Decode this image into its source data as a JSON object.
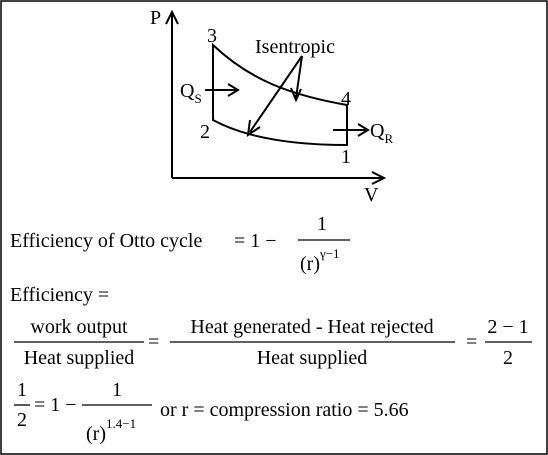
{
  "diagram": {
    "axis_p": "P",
    "axis_v": "V",
    "point_1": "1",
    "point_2": "2",
    "point_3": "3",
    "point_4": "4",
    "isentropic": "Isentropic",
    "heat_in": {
      "symbol": "Q",
      "sub": "S"
    },
    "heat_out": {
      "symbol": "Q",
      "sub": "R"
    }
  },
  "line1": {
    "label": "Efficiency of Otto cycle",
    "eq": "= 1 −",
    "num": "1",
    "den_base": "(r)",
    "den_exp": "γ−1"
  },
  "line2": {
    "text": "Efficiency ="
  },
  "line3": {
    "frac1_num": "work output",
    "frac1_den": "Heat supplied",
    "eq1": "=",
    "frac2_num": "Heat generated - Heat rejected",
    "frac2_den": "Heat supplied",
    "eq2": "=",
    "frac3_num": "2 − 1",
    "frac3_den": "2"
  },
  "line4": {
    "lhs_num": "1",
    "lhs_den": "2",
    "eq": "= 1 −",
    "num": "1",
    "den_base": "(r)",
    "den_exp": "1.4−1",
    "tail": "or r = compression ratio = 5.66"
  }
}
